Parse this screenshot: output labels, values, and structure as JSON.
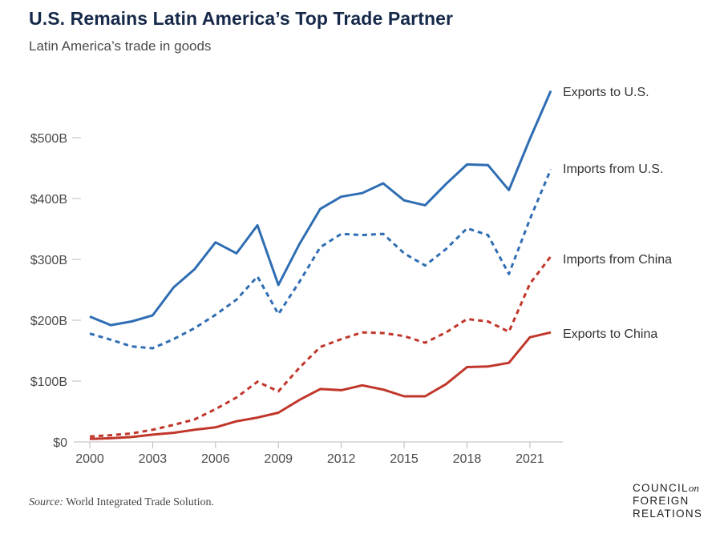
{
  "title": "U.S. Remains Latin America’s Top Trade Partner",
  "subtitle": "Latin America’s trade in goods",
  "source": {
    "label": "Source:",
    "text": "World Integrated Trade Solution."
  },
  "logo": {
    "line1": "COUNCIL",
    "on": "on",
    "line2": "FOREIGN",
    "line3": "RELATIONS"
  },
  "colors": {
    "blue": "#2f6db3",
    "red": "#c1362b",
    "axis": "#bbbbbb",
    "text": "#4a4a4a"
  },
  "chart_data": {
    "type": "line",
    "title": "U.S. Remains Latin America’s Top Trade Partner",
    "subtitle": "Latin America’s trade in goods",
    "xlabel": "",
    "ylabel": "",
    "xlim": [
      2000,
      2022
    ],
    "ylim": [
      0,
      580
    ],
    "x": [
      2000,
      2001,
      2002,
      2003,
      2004,
      2005,
      2006,
      2007,
      2008,
      2009,
      2010,
      2011,
      2012,
      2013,
      2014,
      2015,
      2016,
      2017,
      2018,
      2019,
      2020,
      2021,
      2022
    ],
    "x_ticks": [
      2000,
      2003,
      2006,
      2009,
      2012,
      2015,
      2018,
      2021
    ],
    "y_ticks": [
      {
        "value": 0,
        "label": "$0"
      },
      {
        "value": 100,
        "label": "$100B"
      },
      {
        "value": 200,
        "label": "$200B"
      },
      {
        "value": 300,
        "label": "$300B"
      },
      {
        "value": 400,
        "label": "$400B"
      },
      {
        "value": 500,
        "label": "$500B"
      }
    ],
    "grid": false,
    "legend": "direct labels at right end of each line",
    "series": [
      {
        "name": "Exports to U.S.",
        "color": "#2f6db3",
        "dash": false,
        "values": [
          206,
          192,
          198,
          208,
          254,
          284,
          328,
          310,
          356,
          258,
          325,
          383,
          403,
          409,
          425,
          397,
          389,
          424,
          456,
          455,
          414,
          498,
          577
        ]
      },
      {
        "name": "Imports from U.S.",
        "color": "#2f6db3",
        "dash": true,
        "values": [
          178,
          168,
          157,
          154,
          169,
          187,
          209,
          234,
          272,
          210,
          263,
          320,
          342,
          340,
          342,
          310,
          290,
          317,
          351,
          340,
          276,
          366,
          448
        ]
      },
      {
        "name": "Imports from China",
        "color": "#c1362b",
        "dash": true,
        "values": [
          9,
          11,
          14,
          20,
          28,
          37,
          54,
          73,
          99,
          83,
          122,
          156,
          169,
          180,
          179,
          174,
          163,
          180,
          202,
          198,
          181,
          260,
          305
        ]
      },
      {
        "name": "Exports to China",
        "color": "#c1362b",
        "dash": false,
        "values": [
          5,
          6,
          8,
          12,
          15,
          20,
          24,
          34,
          40,
          48,
          69,
          87,
          85,
          93,
          86,
          75,
          75,
          95,
          123,
          124,
          130,
          172,
          180
        ]
      }
    ]
  }
}
